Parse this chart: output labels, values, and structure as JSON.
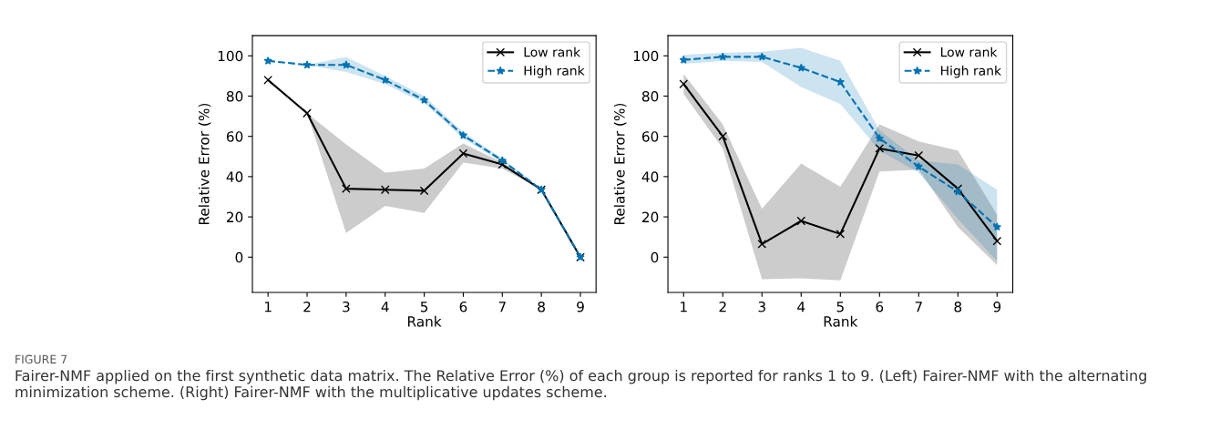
{
  "chart_data": [
    {
      "type": "line",
      "xlabel": "Rank",
      "ylabel": "Relative Error (%)",
      "x": [
        1,
        2,
        3,
        4,
        5,
        6,
        7,
        8,
        9
      ],
      "xlim": [
        0.6,
        9.4
      ],
      "xticks": [
        1,
        2,
        3,
        4,
        5,
        6,
        7,
        8,
        9
      ],
      "ylim": [
        -17.5,
        110
      ],
      "yticks": [
        0,
        20,
        40,
        60,
        80,
        100
      ],
      "grid": false,
      "legend": "top right",
      "series": [
        {
          "name": "Low rank",
          "color": "#000000",
          "marker": "cross",
          "line_style": "solid",
          "values": [
            88,
            71.5,
            34,
            33.5,
            33,
            51.5,
            46,
            33.5,
            0
          ],
          "lower": [
            88,
            71.5,
            12,
            25.5,
            22,
            47,
            44,
            33.5,
            0
          ],
          "upper": [
            88,
            71.5,
            56,
            42,
            44,
            56.5,
            47,
            33.5,
            0
          ]
        },
        {
          "name": "High rank",
          "color": "#0072b2",
          "marker": "star",
          "line_style": "dashed",
          "values": [
            97.5,
            95.5,
            95.5,
            88,
            78,
            60.5,
            48,
            33.5,
            0
          ],
          "lower": [
            97.5,
            95.5,
            92,
            86,
            76.5,
            59,
            47,
            33,
            0
          ],
          "upper": [
            97.5,
            95.5,
            99.5,
            90,
            80,
            62,
            49,
            34,
            0
          ]
        }
      ],
      "annotations": [
        "FIGURE 7",
        "Fairer-NMF applied on the first synthetic data matrix. The Relative Error (%) of each group is reported for ranks 1 to 9. (Left) Fairer-NMF with the alternating minimization scheme. (Right) Fairer-NMF with the multiplicative updates scheme."
      ]
    },
    {
      "type": "line",
      "xlabel": "Rank",
      "ylabel": "Relative Error (%)",
      "x": [
        1,
        2,
        3,
        4,
        5,
        6,
        7,
        8,
        9
      ],
      "xlim": [
        0.6,
        9.4
      ],
      "xticks": [
        1,
        2,
        3,
        4,
        5,
        6,
        7,
        8,
        9
      ],
      "ylim": [
        -17.5,
        110
      ],
      "yticks": [
        0,
        20,
        40,
        60,
        80,
        100
      ],
      "grid": false,
      "legend": "top right",
      "series": [
        {
          "name": "Low rank",
          "color": "#000000",
          "marker": "cross",
          "line_style": "solid",
          "values": [
            86,
            60,
            6.5,
            18,
            11.5,
            54,
            50.5,
            34,
            8
          ],
          "lower": [
            81,
            54,
            -11,
            -10.5,
            -11.5,
            42.5,
            43.5,
            15,
            -4
          ],
          "upper": [
            91,
            66,
            24,
            46.5,
            35,
            66,
            57.5,
            53,
            21
          ]
        },
        {
          "name": "High rank",
          "color": "#0072b2",
          "marker": "star",
          "line_style": "dashed",
          "values": [
            98,
            99.5,
            99.5,
            94,
            87,
            59,
            45,
            32.5,
            15
          ],
          "lower": [
            96,
            97.5,
            97,
            84.5,
            76,
            53,
            42,
            19,
            -2
          ],
          "upper": [
            100.5,
            101.5,
            102,
            104,
            97.5,
            63,
            48,
            46,
            33.5
          ]
        }
      ]
    }
  ]
}
